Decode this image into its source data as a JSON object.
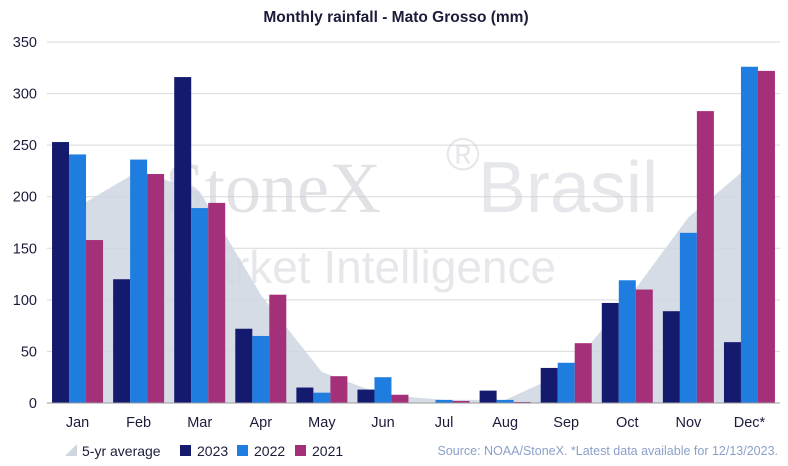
{
  "chart_data": {
    "type": "bar",
    "title": "Monthly rainfall - Mato Grosso (mm)",
    "categories": [
      "Jan",
      "Feb",
      "Mar",
      "Apr",
      "May",
      "Jun",
      "Jul",
      "Aug",
      "Sep",
      "Oct",
      "Nov",
      "Dec*"
    ],
    "ylim": [
      0,
      350
    ],
    "yticks": [
      0,
      50,
      100,
      150,
      200,
      250,
      300,
      350
    ],
    "grid": true,
    "area_series": {
      "name": "5-yr average",
      "color": "#cfd6e0",
      "values": [
        190,
        225,
        205,
        105,
        30,
        8,
        3,
        3,
        30,
        100,
        180,
        230
      ]
    },
    "series": [
      {
        "name": "2023",
        "color": "#141a6e",
        "values": [
          253,
          120,
          316,
          72,
          15,
          13,
          0,
          12,
          34,
          97,
          89,
          59
        ]
      },
      {
        "name": "2022",
        "color": "#1f7de0",
        "values": [
          241,
          236,
          189,
          65,
          10,
          25,
          3,
          3,
          39,
          119,
          165,
          326
        ]
      },
      {
        "name": "2021",
        "color": "#a4307a",
        "values": [
          158,
          222,
          194,
          105,
          26,
          8,
          2,
          1,
          58,
          110,
          283,
          322
        ]
      }
    ],
    "legend_position": "bottom-left",
    "source": "Source: NOAA/StoneX. *Latest data available for 12/13/2023.",
    "watermark": {
      "brand": "StoneX",
      "registered": "®",
      "region": "Brasil",
      "tagline": "Market Intelligence"
    }
  }
}
